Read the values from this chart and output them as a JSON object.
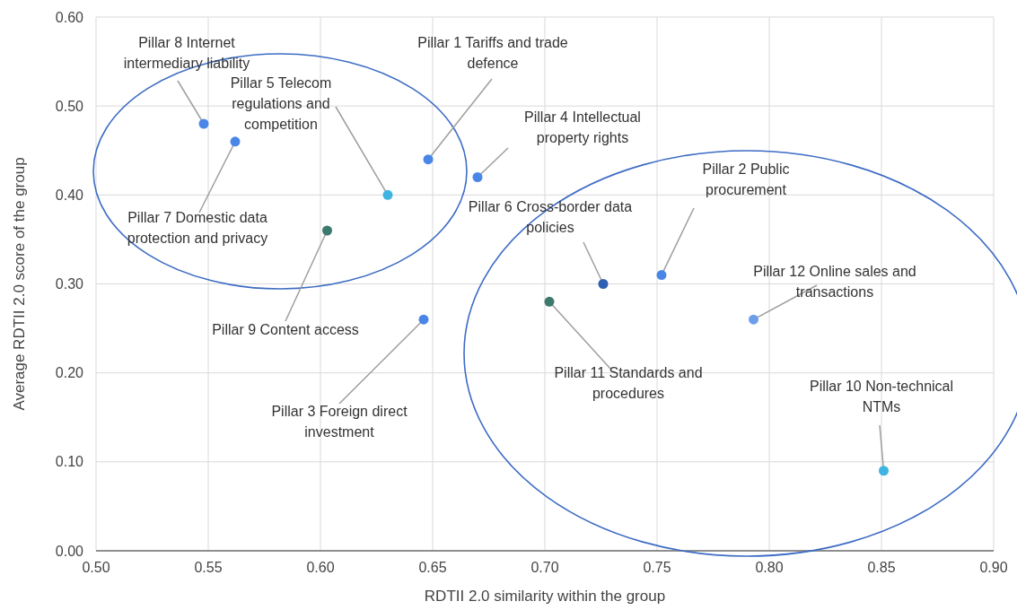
{
  "chart_data": {
    "type": "scatter",
    "xlabel": "RDTII 2.0 similarity within the group",
    "ylabel": "Average RDTII 2.0  score of the group",
    "x": [
      0.548,
      0.562,
      0.63,
      0.648,
      0.67,
      0.603,
      0.646,
      0.726,
      0.752,
      0.702,
      0.793,
      0.851
    ],
    "values": [
      0.48,
      0.46,
      0.4,
      0.44,
      0.42,
      0.36,
      0.26,
      0.3,
      0.31,
      0.28,
      0.26,
      0.09
    ],
    "colors": [
      "#4a86e8",
      "#4a86e8",
      "#3fb4e0",
      "#4a86e8",
      "#4a86e8",
      "#3d7a6e",
      "#4a86e8",
      "#2f5fb3",
      "#4a86e8",
      "#3d7a6e",
      "#6d9eeb",
      "#3fb4e0"
    ],
    "marker": "circle",
    "grid": true,
    "xlim": [
      0.5,
      0.9
    ],
    "xticks": [
      {
        "value": 0.5,
        "label": "0.50"
      },
      {
        "value": 0.55,
        "label": "0.55"
      },
      {
        "value": 0.6,
        "label": "0.60"
      },
      {
        "value": 0.65,
        "label": "0.65"
      },
      {
        "value": 0.7,
        "label": "0.70"
      },
      {
        "value": 0.75,
        "label": "0.75"
      },
      {
        "value": 0.8,
        "label": "0.80"
      },
      {
        "value": 0.85,
        "label": "0.85"
      },
      {
        "value": 0.9,
        "label": "0.90"
      }
    ],
    "ylim": [
      0,
      0.6
    ],
    "yticks": [
      {
        "value": 0,
        "label": "0.00"
      },
      {
        "value": 0.1,
        "label": "0.10"
      },
      {
        "value": 0.2,
        "label": "0.20"
      },
      {
        "value": 0.3,
        "label": "0.30"
      },
      {
        "value": 0.4,
        "label": "0.40"
      },
      {
        "value": 0.5,
        "label": "0.50"
      },
      {
        "value": 0.6,
        "label": "0.60"
      }
    ],
    "annotations": [
      {
        "text": "Pillar 8 Internet intermediary liability",
        "x": 0.548,
        "y": 0.48
      },
      {
        "text": "Pillar 7 Domestic data protection and privacy",
        "x": 0.562,
        "y": 0.46
      },
      {
        "text": "Pillar 5 Telecom regulations and competition",
        "x": 0.63,
        "y": 0.4
      },
      {
        "text": "Pillar 1 Tariffs and trade defence",
        "x": 0.648,
        "y": 0.44
      },
      {
        "text": "Pillar 4 Intellectual property rights",
        "x": 0.67,
        "y": 0.42
      },
      {
        "text": "Pillar 9 Content access",
        "x": 0.603,
        "y": 0.36
      },
      {
        "text": "Pillar 3 Foreign direct investment",
        "x": 0.646,
        "y": 0.26
      },
      {
        "text": "Pillar 6 Cross-border data policies",
        "x": 0.726,
        "y": 0.3
      },
      {
        "text": "Pillar 2 Public procurement",
        "x": 0.752,
        "y": 0.31
      },
      {
        "text": "Pillar 12 Online sales and transactions",
        "x": 0.793,
        "y": 0.26
      },
      {
        "text": "Pillar 11 Standards and procedures",
        "x": 0.702,
        "y": 0.28
      },
      {
        "text": "Pillar 10 Non-technical NTMs",
        "x": 0.851,
        "y": 0.09
      }
    ]
  }
}
